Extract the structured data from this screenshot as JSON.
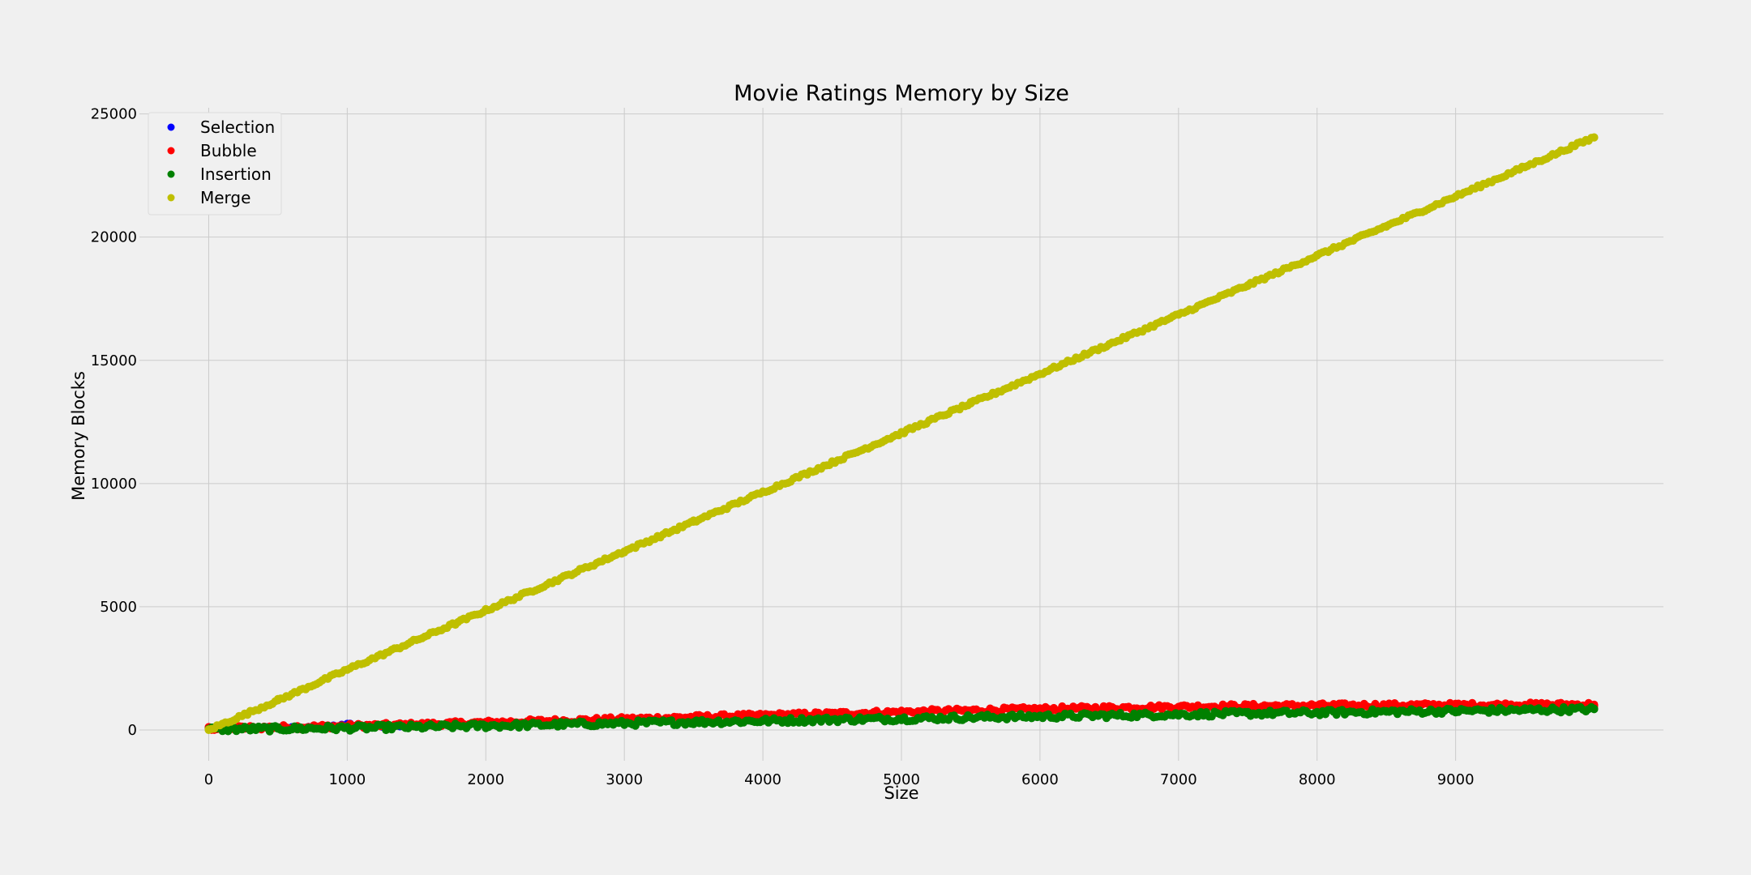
{
  "chart_data": {
    "type": "scatter",
    "title": "Movie Ratings Memory by Size",
    "xlabel": "Size",
    "ylabel": "Memory Blocks",
    "xlim": [
      -500,
      10500
    ],
    "ylim": [
      -1250,
      25250
    ],
    "xticks": [
      0,
      1000,
      2000,
      3000,
      4000,
      5000,
      6000,
      7000,
      8000,
      9000
    ],
    "yticks": [
      0,
      5000,
      10000,
      15000,
      20000,
      25000
    ],
    "grid": true,
    "legend_position": "top-left",
    "series": [
      {
        "name": "Selection",
        "color": "#0000ff",
        "x": [
          0,
          250,
          500,
          750,
          1000,
          1250,
          1500,
          1750
        ],
        "y": [
          90,
          80,
          100,
          110,
          250,
          130,
          170,
          230
        ]
      },
      {
        "name": "Bubble",
        "color": "#ff0000",
        "x": [
          0,
          500,
          1000,
          1500,
          2000,
          2500,
          3000,
          3500,
          4000,
          4500,
          5000,
          5500,
          6000,
          6500,
          7000,
          7500,
          8000,
          8500,
          9000,
          9500,
          10000
        ],
        "y": [
          60,
          110,
          160,
          220,
          300,
          370,
          440,
          520,
          590,
          660,
          730,
          790,
          850,
          900,
          940,
          970,
          990,
          1000,
          1010,
          1020,
          1030
        ]
      },
      {
        "name": "Insertion",
        "color": "#008000",
        "x": [
          0,
          500,
          1000,
          1500,
          2000,
          2500,
          3000,
          3500,
          4000,
          4500,
          5000,
          5500,
          6000,
          6500,
          7000,
          7500,
          8000,
          8500,
          9000,
          9500,
          10000
        ],
        "y": [
          30,
          50,
          80,
          120,
          170,
          220,
          270,
          320,
          370,
          420,
          460,
          510,
          550,
          590,
          630,
          670,
          700,
          740,
          770,
          810,
          840
        ]
      },
      {
        "name": "Merge",
        "color": "#bfbf00",
        "x": [
          0,
          500,
          1000,
          1500,
          2000,
          2500,
          3000,
          3500,
          4000,
          4500,
          5000,
          5500,
          6000,
          6500,
          7000,
          7500,
          8000,
          8500,
          9000,
          9500,
          10000
        ],
        "y": [
          0,
          1200,
          2450,
          3650,
          4850,
          6050,
          7250,
          8450,
          9650,
          10850,
          12050,
          13250,
          14450,
          15650,
          16850,
          18050,
          19250,
          20450,
          21650,
          22850,
          24050
        ]
      }
    ]
  }
}
